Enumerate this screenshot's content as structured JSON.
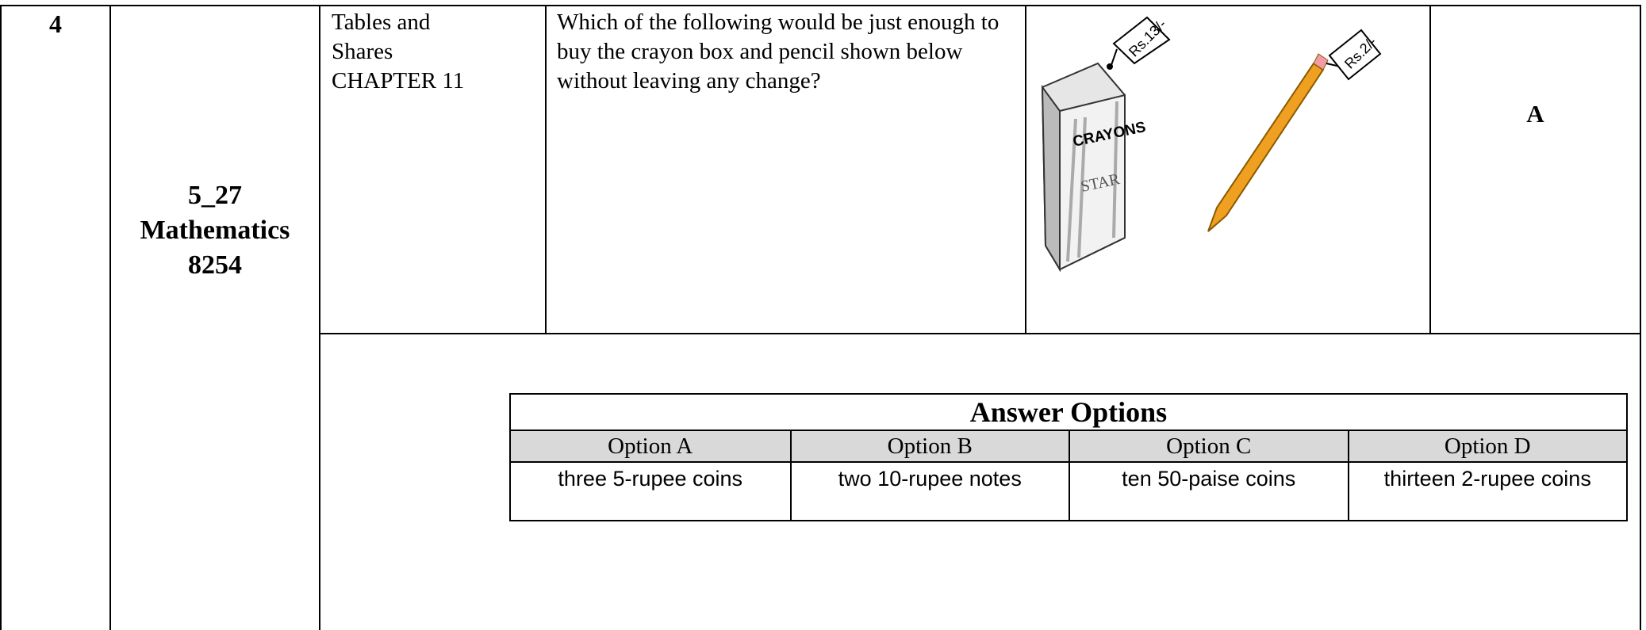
{
  "row": {
    "number": "4",
    "code": "5_27",
    "subject": "Mathematics",
    "id": "8254",
    "topic": "Tables and Shares",
    "chapter": "CHAPTER 11",
    "question": "Which of the following would be just enough to buy the crayon box and pencil shown below without leaving any change?",
    "image": {
      "box_brand": "CRAYONS",
      "box_name": "STAR",
      "box_price": "Rs.13/-",
      "pencil_price": "Rs.2/-"
    },
    "answer": "A"
  },
  "answer_table": {
    "title": "Answer Options",
    "headers": [
      "Option A",
      "Option B",
      "Option  C",
      "Option  D"
    ],
    "options": [
      "three 5-rupee coins",
      "two 10-rupee notes",
      "ten 50-paise coins",
      "thirteen 2-rupee coins"
    ]
  }
}
